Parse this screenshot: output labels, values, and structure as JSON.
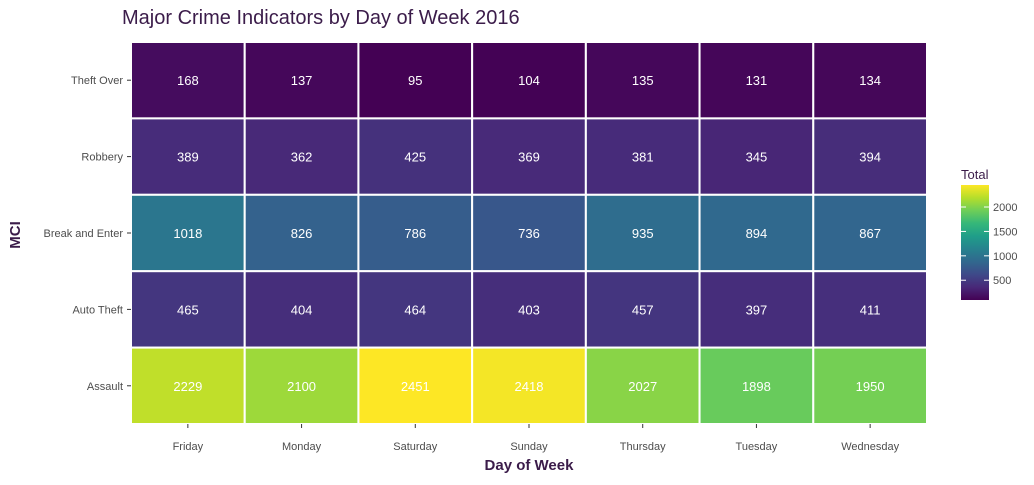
{
  "chart_data": {
    "type": "heatmap",
    "title": "Major Crime Indicators by Day of Week 2016",
    "xlabel": "Day of Week",
    "ylabel": "MCI",
    "x_categories": [
      "Friday",
      "Monday",
      "Saturday",
      "Sunday",
      "Thursday",
      "Tuesday",
      "Wednesday"
    ],
    "y_categories": [
      "Theft Over",
      "Robbery",
      "Break and Enter",
      "Auto Theft",
      "Assault"
    ],
    "values": [
      [
        168,
        137,
        95,
        104,
        135,
        131,
        134
      ],
      [
        389,
        362,
        425,
        369,
        381,
        345,
        394
      ],
      [
        1018,
        826,
        786,
        736,
        935,
        894,
        867
      ],
      [
        465,
        404,
        464,
        403,
        457,
        397,
        411
      ],
      [
        2229,
        2100,
        2451,
        2418,
        2027,
        1898,
        1950
      ]
    ],
    "legend": {
      "title": "Total",
      "ticks": [
        500,
        1000,
        1500,
        2000
      ],
      "range": [
        95,
        2451
      ],
      "colormap": "viridis",
      "position": "right"
    },
    "colors": [
      "#440154",
      "#482878",
      "#3e4989",
      "#31688e",
      "#26828e",
      "#1f9e89",
      "#35b779",
      "#6ece58",
      "#b5de2b",
      "#fde725"
    ]
  }
}
